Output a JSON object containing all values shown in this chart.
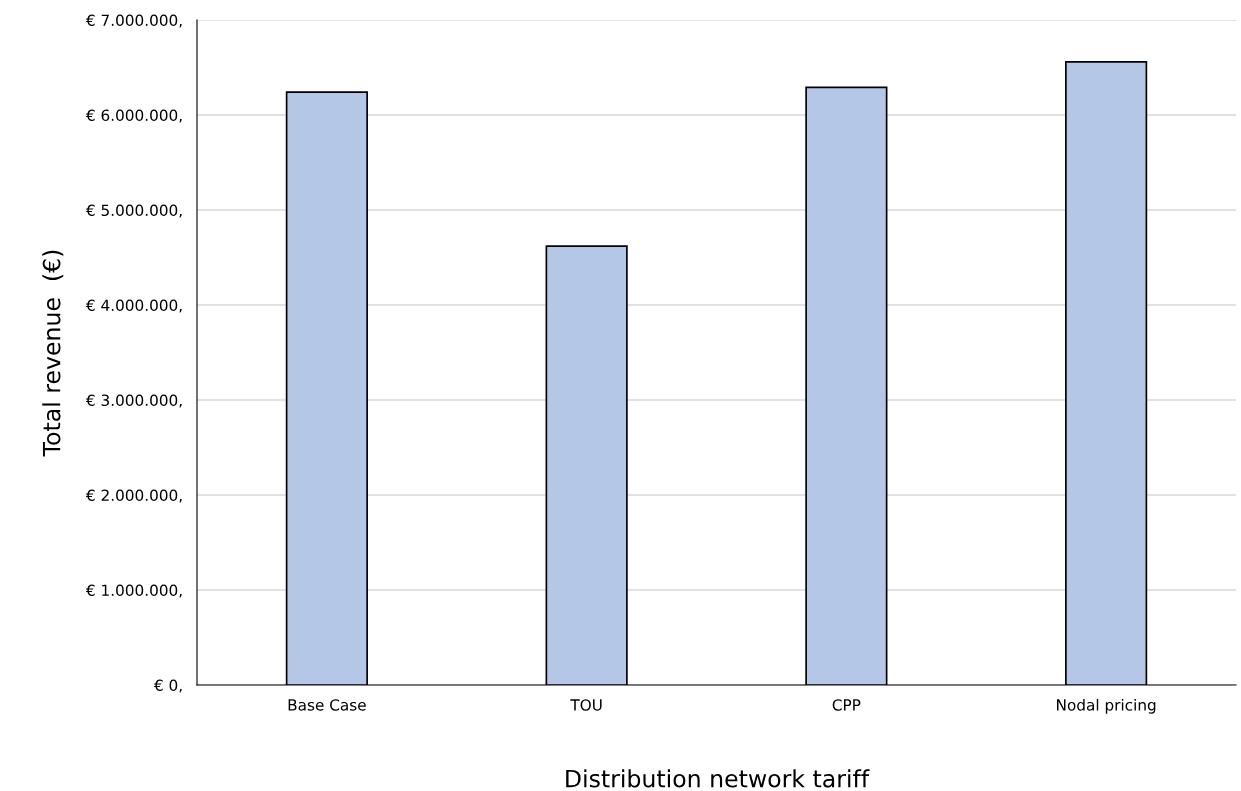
{
  "chart_data": {
    "type": "bar",
    "xlabel": "Distribution network tariff",
    "ylabel": "Total revenue  (€)",
    "categories": [
      "Base Case",
      "TOU",
      "CPP",
      "Nodal pricing"
    ],
    "values": [
      6240000,
      4620000,
      6290000,
      6560000
    ],
    "color": "#b4c7e7",
    "ylim": [
      0,
      7000000
    ],
    "yticks": [
      {
        "value": 0,
        "label": "€ 0,"
      },
      {
        "value": 1000000,
        "label": "€ 1.000.000,"
      },
      {
        "value": 2000000,
        "label": "€ 2.000.000,"
      },
      {
        "value": 3000000,
        "label": "€ 3.000.000,"
      },
      {
        "value": 4000000,
        "label": "€ 4.000.000,"
      },
      {
        "value": 5000000,
        "label": "€ 5.000.000,"
      },
      {
        "value": 6000000,
        "label": "€ 6.000.000,"
      },
      {
        "value": 7000000,
        "label": "€ 7.000.000,"
      }
    ],
    "grid": "y",
    "legend": false
  }
}
